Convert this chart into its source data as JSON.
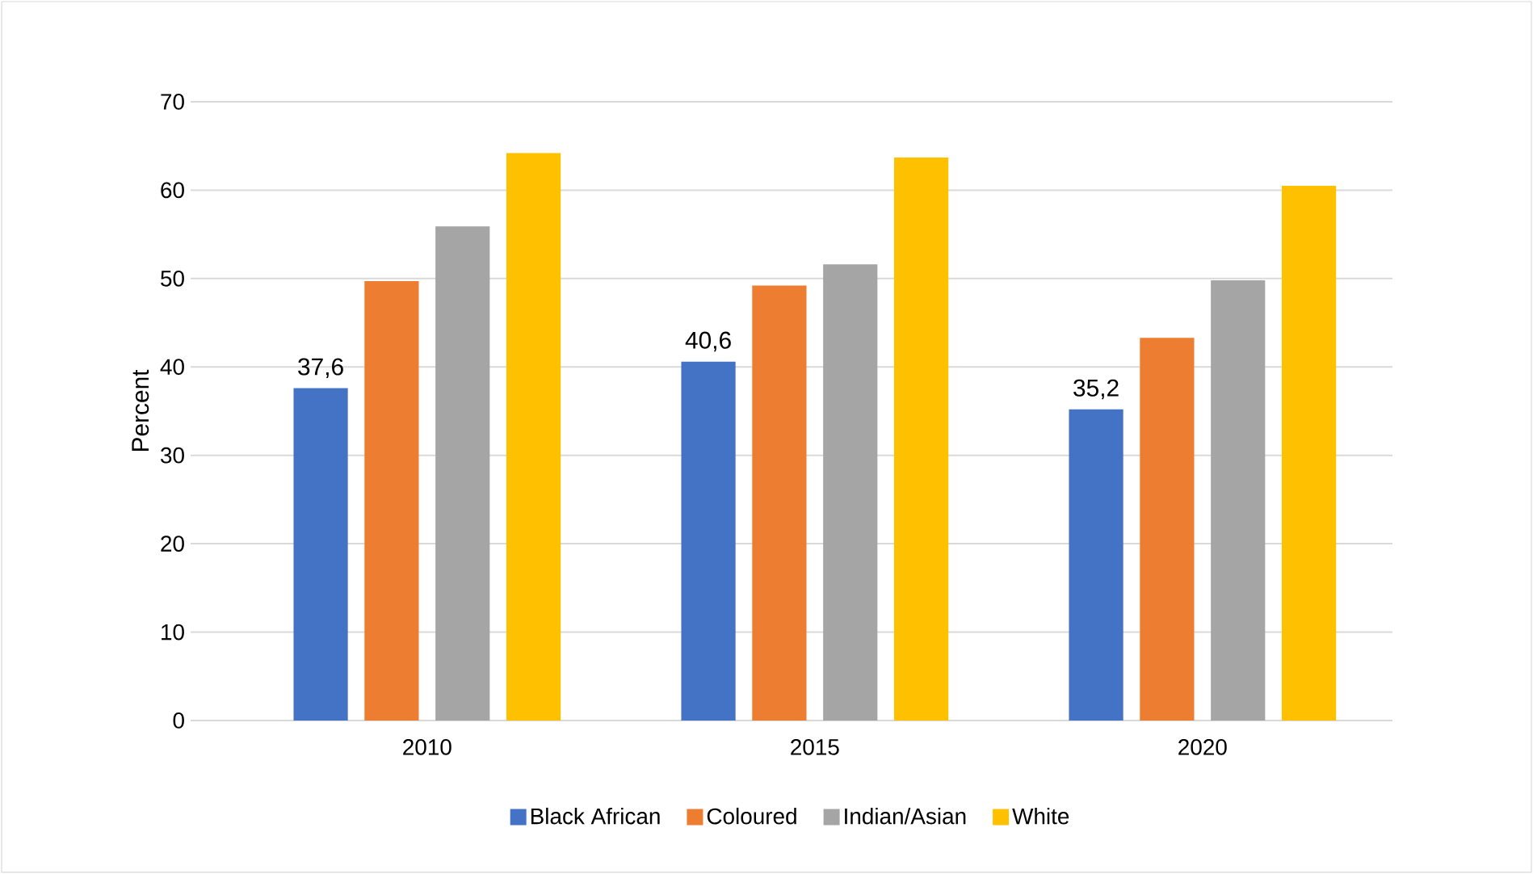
{
  "chart_data": {
    "type": "bar",
    "ylabel": "Percent",
    "categories": [
      "2010",
      "2015",
      "2020"
    ],
    "series": [
      {
        "name": "Black African",
        "color": "#4472c4",
        "values": [
          37.6,
          40.6,
          35.2
        ],
        "value_labels": [
          "37,6",
          "40,6",
          "35,2"
        ]
      },
      {
        "name": "Coloured",
        "color": "#ed7d31",
        "values": [
          49.7,
          49.2,
          43.3
        ]
      },
      {
        "name": "Indian/Asian",
        "color": "#a5a5a5",
        "values": [
          55.9,
          51.6,
          49.8
        ]
      },
      {
        "name": "White",
        "color": "#ffc000",
        "values": [
          64.2,
          63.7,
          60.5
        ]
      }
    ],
    "ylim": [
      0,
      70
    ],
    "yticks": [
      0,
      10,
      20,
      30,
      40,
      50,
      60,
      70
    ],
    "grid": "y",
    "legend": "bottom"
  }
}
